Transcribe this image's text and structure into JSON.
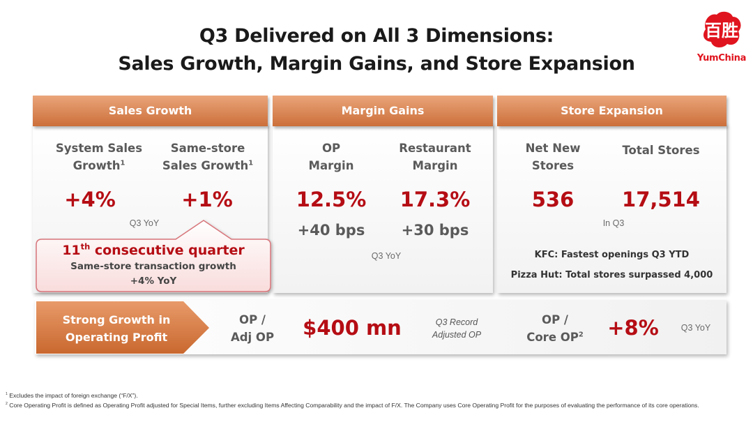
{
  "title": {
    "line1": "Q3 Delivered on All 3 Dimensions:",
    "line2": "Sales Growth, Margin Gains, and Store Expansion"
  },
  "logo": {
    "text": "YumChina",
    "mark_label": "百胜"
  },
  "sales_growth": {
    "header": "Sales Growth",
    "system_label_1": "System Sales",
    "system_label_2": "Growth",
    "system_sup": "1",
    "system_value": "+4%",
    "sss_label_1": "Same-store",
    "sss_label_2": "Sales Growth",
    "sss_sup": "1",
    "sss_value": "+1%",
    "period": "Q3 YoY",
    "callout": {
      "num": "11",
      "sup": "th",
      "rest": " consecutive quarter",
      "line2": "Same-store transaction growth",
      "line3": "+4% YoY"
    }
  },
  "margin_gains": {
    "header": "Margin Gains",
    "op_label_1": "OP",
    "op_label_2": "Margin",
    "op_value": "12.5%",
    "op_change": "+40 bps",
    "rest_label_1": "Restaurant",
    "rest_label_2": "Margin",
    "rest_value": "17.3%",
    "rest_change": "+30 bps",
    "period": "Q3 YoY"
  },
  "store_expansion": {
    "header": "Store Expansion",
    "new_label_1": "Net New",
    "new_label_2": "Stores",
    "new_value": "536",
    "total_label": "Total Stores",
    "total_value": "17,514",
    "period": "In Q3",
    "note1": "KFC: Fastest openings Q3 YTD",
    "note2": "Pizza Hut: Total stores surpassed 4,000"
  },
  "operating_profit": {
    "arrow_line1": "Strong Growth in",
    "arrow_line2": "Operating Profit",
    "op_label_1": "OP /",
    "op_label_2": "Adj OP",
    "op_value": "$400 mn",
    "record_1": "Q3 Record",
    "record_2": "Adjusted OP",
    "core_label_1": "OP /",
    "core_label_2": "Core OP",
    "core_sup": "2",
    "core_value": "+8%",
    "period": "Q3 YoY"
  },
  "footnotes": {
    "f1_mark": "1",
    "f1": "Excludes the impact of foreign exchange (“F/X”).",
    "f2_mark": "2",
    "f2": "Core Operating Profit is defined as Operating Profit adjusted for Special Items, further excluding Items Affecting Comparability and the impact of F/X. The Company uses Core Operating Profit for the purposes of evaluating the performance of its core operations."
  },
  "colors": {
    "accent_red": "#b50d14",
    "banner_orange": "#d9804b",
    "brand_red": "#e0141e"
  }
}
